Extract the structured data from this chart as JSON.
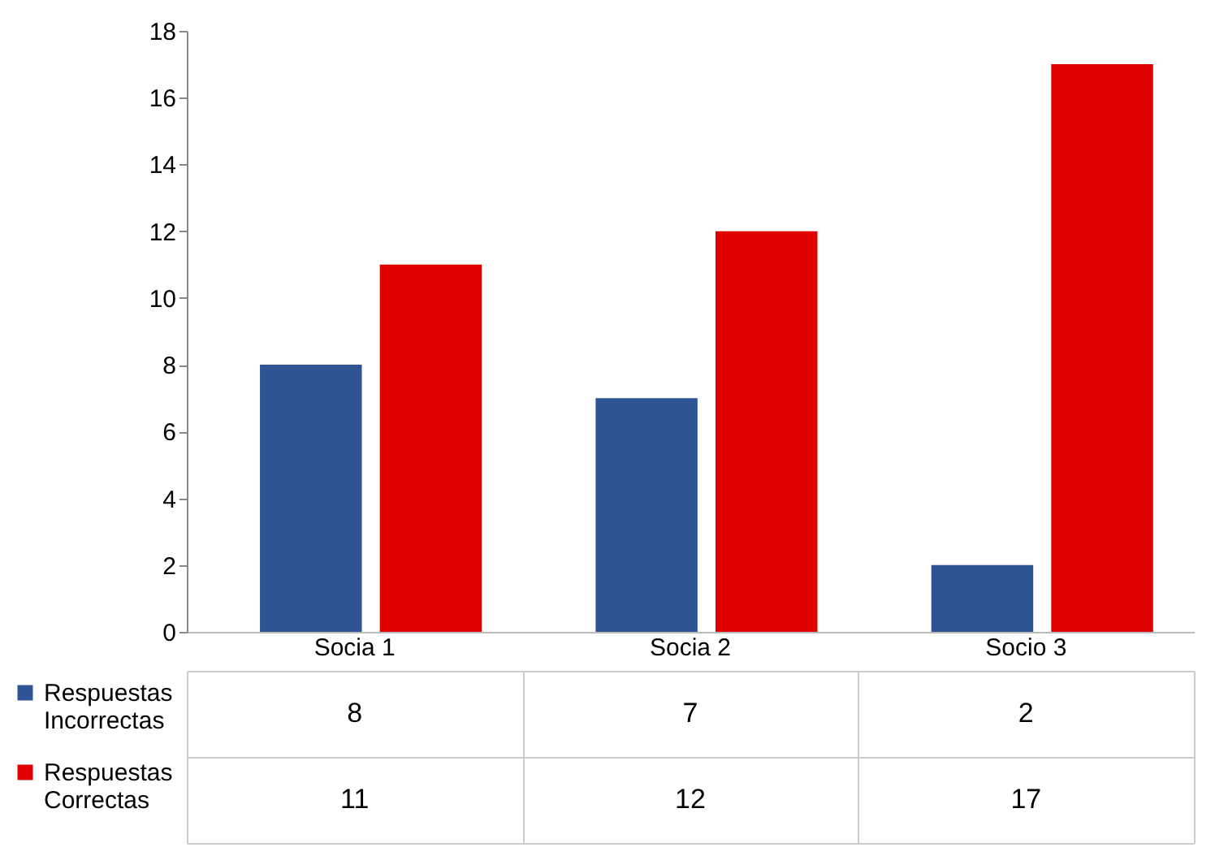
{
  "chart_data": {
    "type": "bar",
    "categories": [
      "Socia 1",
      "Socia 2",
      "Socio 3"
    ],
    "series": [
      {
        "name": "Respuestas Incorrectas",
        "color": "#2f5496",
        "values": [
          8,
          7,
          2
        ]
      },
      {
        "name": "Respuestas Correctas",
        "color": "#e00000",
        "values": [
          11,
          12,
          17
        ]
      }
    ],
    "ylim": [
      0,
      18
    ],
    "yticks": [
      0,
      2,
      4,
      6,
      8,
      10,
      12,
      14,
      16,
      18
    ],
    "data_labels": true,
    "legend": "bottom left"
  }
}
